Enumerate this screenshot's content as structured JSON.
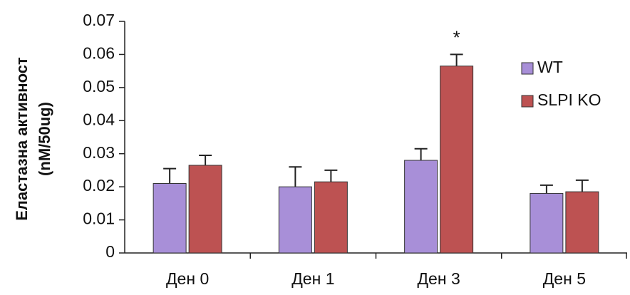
{
  "chart_data": {
    "type": "bar",
    "y_label": [
      "Еластазна активност",
      "(nM/50ug)"
    ],
    "categories": [
      "Ден 0",
      "Ден 1",
      "Ден 3",
      "Ден 5"
    ],
    "series": [
      {
        "name": "WT",
        "color": "#a88fd8",
        "values": [
          0.021,
          0.02,
          0.028,
          0.018
        ],
        "errors": [
          0.0045,
          0.006,
          0.0035,
          0.0025
        ]
      },
      {
        "name": "SLPI KO",
        "color": "#bd5252",
        "values": [
          0.0265,
          0.0215,
          0.0565,
          0.0185
        ],
        "errors": [
          0.003,
          0.0035,
          0.0035,
          0.0035
        ],
        "annotations": [
          null,
          null,
          "*",
          null
        ]
      }
    ],
    "ylim": [
      0,
      0.07
    ],
    "yticks": [
      0,
      0.01,
      0.02,
      0.03,
      0.04,
      0.05,
      0.06,
      0.07
    ],
    "grid": false,
    "legend": "right"
  }
}
